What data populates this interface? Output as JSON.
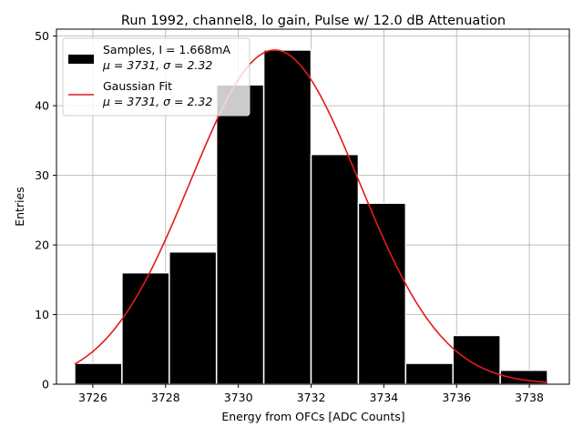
{
  "chart_data": {
    "type": "bar",
    "title": "Run 1992, channel8, lo gain, Pulse w/ 12.0 dB Attenuation",
    "xlabel": "Energy from OFCs [ADC Counts]",
    "ylabel": "Entries",
    "xlim": [
      3725.0,
      3739.1
    ],
    "ylim": [
      0,
      51
    ],
    "xticks": [
      3726,
      3728,
      3730,
      3732,
      3734,
      3736,
      3738
    ],
    "yticks": [
      0,
      10,
      20,
      30,
      40,
      50
    ],
    "grid": true,
    "bin_edges": [
      3725.5,
      3726.8,
      3728.1,
      3729.4,
      3730.7,
      3732.0,
      3733.3,
      3734.6,
      3735.9,
      3737.2,
      3738.5
    ],
    "counts": [
      3,
      16,
      19,
      43,
      48,
      33,
      26,
      3,
      7,
      2
    ],
    "fit": {
      "mu": 3731.0,
      "sigma": 2.32,
      "amplitude": 48,
      "x_range": [
        3725.5,
        3738.5
      ]
    },
    "series": [
      {
        "name": "Samples",
        "type": "histogram",
        "color": "#000000"
      },
      {
        "name": "Gaussian Fit",
        "type": "line",
        "color": "#e41a1c"
      }
    ],
    "legend": {
      "position": "top-left",
      "entries": [
        {
          "line1": "Samples, I = 1.668mA",
          "line2": "μ = 3731, σ = 2.32"
        },
        {
          "line1": "Gaussian Fit",
          "line2": "μ = 3731, σ = 2.32"
        }
      ]
    }
  }
}
